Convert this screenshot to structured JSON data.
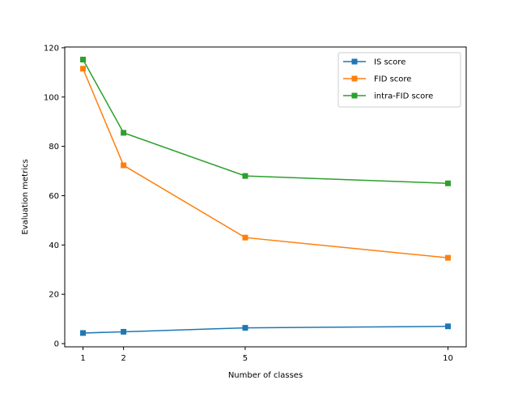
{
  "chart_data": {
    "type": "line",
    "xlabel": "Number of classes",
    "ylabel": "Evaluation metrics",
    "x": [
      1,
      2,
      5,
      10
    ],
    "xticks": [
      1,
      2,
      5,
      10
    ],
    "xlim": [
      0.55,
      10.45
    ],
    "yticks": [
      0,
      20,
      40,
      60,
      80,
      100,
      120
    ],
    "ylim": [
      -1.3,
      120.3
    ],
    "grid": false,
    "legend_position": "top-right",
    "marker": "square",
    "series": [
      {
        "name": "IS score",
        "color": "#1f77b4",
        "values": [
          4.3,
          4.8,
          6.4,
          7.0
        ]
      },
      {
        "name": "FID score",
        "color": "#ff7f0e",
        "values": [
          111.5,
          72.3,
          43.0,
          34.8
        ]
      },
      {
        "name": "intra-FID score",
        "color": "#2ca02c",
        "values": [
          115.2,
          85.5,
          68.0,
          65.0
        ]
      }
    ]
  }
}
